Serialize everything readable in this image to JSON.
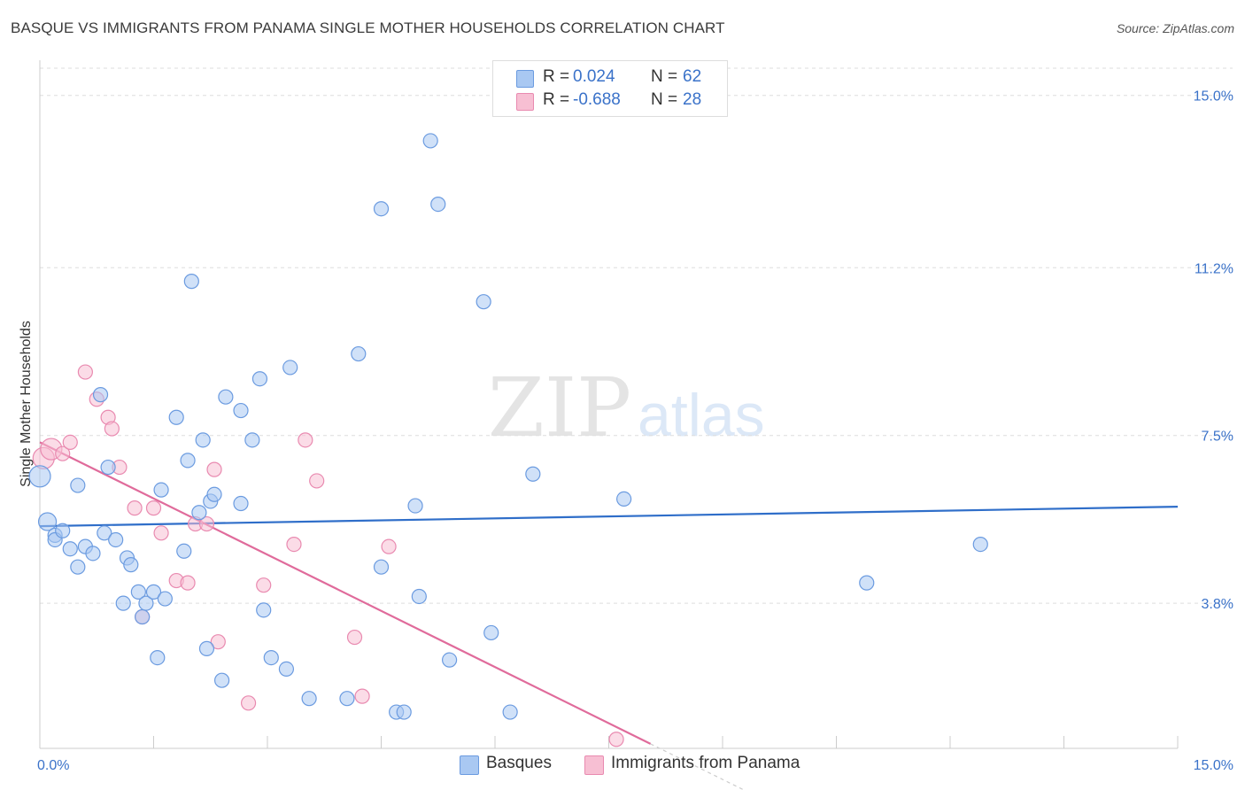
{
  "title": "BASQUE VS IMMIGRANTS FROM PANAMA SINGLE MOTHER HOUSEHOLDS CORRELATION CHART",
  "source": "Source: ZipAtlas.com",
  "watermark": {
    "zip": "ZIP",
    "atlas": "atlas"
  },
  "colors": {
    "basque_fill": "#a9c8f2",
    "basque_stroke": "#6b9be0",
    "basque_line": "#2f6ec9",
    "panama_fill": "#f7bfd3",
    "panama_stroke": "#e98ab0",
    "panama_line": "#e06b9b",
    "grid": "#dddddd",
    "tick_label": "#3a72c9"
  },
  "legend_top": [
    {
      "r_label": "R =",
      "r_value": "0.024",
      "n_label": "N =",
      "n_value": "62"
    },
    {
      "r_label": "R =",
      "r_value": "-0.688",
      "n_label": "N =",
      "n_value": "28"
    }
  ],
  "legend_bottom": [
    "Basques",
    "Immigrants from Panama"
  ],
  "chart_data": {
    "type": "scatter",
    "title": "BASQUE VS IMMIGRANTS FROM PANAMA SINGLE MOTHER HOUSEHOLDS CORRELATION CHART",
    "ylabel": "Single Mother Households",
    "xlabel": "",
    "xlim": [
      0,
      15
    ],
    "ylim": [
      0.6,
      15.6
    ],
    "x_tick_labels": [
      "0.0%",
      "15.0%"
    ],
    "y_ticks": [
      {
        "value": 3.8,
        "label": "3.8%"
      },
      {
        "value": 7.5,
        "label": "7.5%"
      },
      {
        "value": 11.2,
        "label": "11.2%"
      },
      {
        "value": 15.0,
        "label": "15.0%"
      }
    ],
    "grid": true,
    "legend_position": "top-center",
    "series": [
      {
        "name": "Basques",
        "r": 0.024,
        "n": 62,
        "trend": {
          "x": [
            0.0,
            15.0
          ],
          "y": [
            5.5,
            5.93
          ]
        },
        "points": [
          [
            0.0,
            6.6,
            12
          ],
          [
            0.1,
            5.6,
            10
          ],
          [
            0.2,
            5.3,
            8
          ],
          [
            0.2,
            5.2,
            8
          ],
          [
            0.3,
            5.4,
            8
          ],
          [
            0.4,
            5.0,
            8
          ],
          [
            0.5,
            4.6,
            8
          ],
          [
            0.5,
            6.4,
            8
          ],
          [
            0.6,
            5.05,
            8
          ],
          [
            0.7,
            4.9,
            8
          ],
          [
            0.8,
            8.4,
            8
          ],
          [
            0.85,
            5.35,
            8
          ],
          [
            0.9,
            6.8,
            8
          ],
          [
            1.0,
            5.2,
            8
          ],
          [
            1.1,
            3.8,
            8
          ],
          [
            1.15,
            4.8,
            8
          ],
          [
            1.2,
            4.65,
            8
          ],
          [
            1.3,
            4.05,
            8
          ],
          [
            1.35,
            3.5,
            8
          ],
          [
            1.4,
            3.8,
            8
          ],
          [
            1.5,
            4.05,
            8
          ],
          [
            1.55,
            2.6,
            8
          ],
          [
            1.6,
            6.3,
            8
          ],
          [
            1.65,
            3.9,
            8
          ],
          [
            1.8,
            7.9,
            8
          ],
          [
            1.9,
            4.95,
            8
          ],
          [
            1.95,
            6.95,
            8
          ],
          [
            2.0,
            10.9,
            8
          ],
          [
            2.1,
            5.8,
            8
          ],
          [
            2.15,
            7.4,
            8
          ],
          [
            2.2,
            2.8,
            8
          ],
          [
            2.25,
            6.05,
            8
          ],
          [
            2.3,
            6.2,
            8
          ],
          [
            2.4,
            2.1,
            8
          ],
          [
            2.45,
            8.35,
            8
          ],
          [
            2.65,
            8.05,
            8
          ],
          [
            2.65,
            6.0,
            8
          ],
          [
            2.8,
            7.4,
            8
          ],
          [
            2.9,
            8.75,
            8
          ],
          [
            2.95,
            3.65,
            8
          ],
          [
            3.05,
            2.6,
            8
          ],
          [
            3.25,
            2.35,
            8
          ],
          [
            3.3,
            9.0,
            8
          ],
          [
            3.55,
            1.7,
            8
          ],
          [
            4.05,
            1.7,
            8
          ],
          [
            4.2,
            9.3,
            8
          ],
          [
            4.5,
            4.6,
            8
          ],
          [
            4.5,
            12.5,
            8
          ],
          [
            4.7,
            1.4,
            8
          ],
          [
            4.8,
            1.4,
            8
          ],
          [
            4.95,
            5.95,
            8
          ],
          [
            5.0,
            3.95,
            8
          ],
          [
            5.15,
            14.0,
            8
          ],
          [
            5.25,
            12.6,
            8
          ],
          [
            5.4,
            2.55,
            8
          ],
          [
            5.85,
            10.45,
            8
          ],
          [
            5.95,
            3.15,
            8
          ],
          [
            6.2,
            1.4,
            8
          ],
          [
            6.5,
            6.65,
            8
          ],
          [
            7.7,
            6.1,
            8
          ],
          [
            10.9,
            4.25,
            8
          ],
          [
            12.4,
            5.1,
            8
          ]
        ]
      },
      {
        "name": "Immigrants from Panama",
        "r": -0.688,
        "n": 28,
        "trend": {
          "x": [
            0.0,
            8.05
          ],
          "y": [
            7.35,
            0.7
          ],
          "dash_x_end": 9.3
        },
        "points": [
          [
            0.05,
            7.0,
            12
          ],
          [
            0.15,
            7.2,
            12
          ],
          [
            0.3,
            7.1,
            8
          ],
          [
            0.4,
            7.35,
            8
          ],
          [
            0.6,
            8.9,
            8
          ],
          [
            0.75,
            8.3,
            8
          ],
          [
            0.9,
            7.9,
            8
          ],
          [
            0.95,
            7.65,
            8
          ],
          [
            1.05,
            6.8,
            8
          ],
          [
            1.25,
            5.9,
            8
          ],
          [
            1.35,
            3.5,
            8
          ],
          [
            1.5,
            5.9,
            8
          ],
          [
            1.6,
            5.35,
            8
          ],
          [
            1.8,
            4.3,
            8
          ],
          [
            1.95,
            4.25,
            8
          ],
          [
            2.05,
            5.55,
            8
          ],
          [
            2.2,
            5.55,
            8
          ],
          [
            2.3,
            6.75,
            8
          ],
          [
            2.35,
            2.95,
            8
          ],
          [
            2.75,
            1.6,
            8
          ],
          [
            2.95,
            4.2,
            8
          ],
          [
            3.35,
            5.1,
            8
          ],
          [
            3.5,
            7.4,
            8
          ],
          [
            3.65,
            6.5,
            8
          ],
          [
            4.15,
            3.05,
            8
          ],
          [
            4.25,
            1.75,
            8
          ],
          [
            4.6,
            5.05,
            8
          ],
          [
            7.6,
            0.8,
            8
          ]
        ]
      }
    ]
  }
}
